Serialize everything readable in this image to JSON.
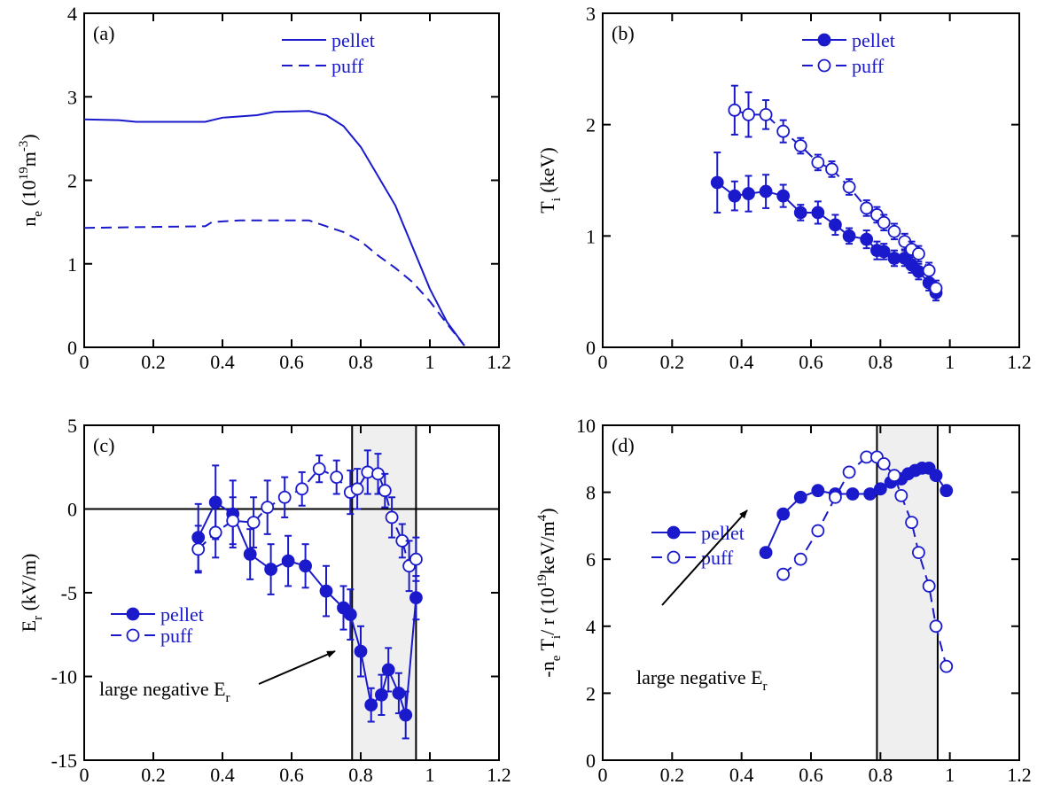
{
  "chart_data": [
    {
      "type": "line",
      "panel_label": "(a)",
      "xlim": [
        0,
        1.2
      ],
      "ylim": [
        0,
        4
      ],
      "xticks": [
        0,
        0.2,
        0.4,
        0.6,
        0.8,
        1,
        1.2
      ],
      "yticks": [
        0,
        1,
        2,
        3,
        4
      ],
      "ylabel": [
        {
          "text": "n"
        },
        {
          "text": "e",
          "shift": "sub"
        },
        {
          "text": " (10"
        },
        {
          "text": "19",
          "shift": "sup"
        },
        {
          "text": "m"
        },
        {
          "text": "-3",
          "shift": "sup"
        },
        {
          "text": ")"
        }
      ],
      "legend": "upper right",
      "series": [
        {
          "name": "pellet",
          "color": "#1a1acc",
          "style": "solid",
          "marker": "none",
          "x": [
            0,
            0.1,
            0.15,
            0.35,
            0.4,
            0.5,
            0.55,
            0.65,
            0.7,
            0.75,
            0.8,
            0.85,
            0.9,
            0.95,
            1.0,
            1.05,
            1.1
          ],
          "values": [
            2.73,
            2.72,
            2.7,
            2.7,
            2.75,
            2.78,
            2.82,
            2.83,
            2.78,
            2.65,
            2.4,
            2.05,
            1.7,
            1.2,
            0.7,
            0.3,
            0.02
          ]
        },
        {
          "name": "puff",
          "color": "#1a1acc",
          "style": "dashed",
          "marker": "none",
          "x": [
            0,
            0.35,
            0.37,
            0.45,
            0.65,
            0.7,
            0.75,
            0.8,
            0.85,
            0.9,
            0.95,
            1.0,
            1.05,
            1.1
          ],
          "values": [
            1.43,
            1.45,
            1.5,
            1.52,
            1.52,
            1.45,
            1.38,
            1.27,
            1.1,
            0.95,
            0.78,
            0.55,
            0.28,
            0.02
          ]
        }
      ]
    },
    {
      "type": "line",
      "panel_label": "(b)",
      "xlim": [
        0,
        1.2
      ],
      "ylim": [
        0,
        3
      ],
      "xticks": [
        0,
        0.2,
        0.4,
        0.6,
        0.8,
        1,
        1.2
      ],
      "yticks": [
        0,
        1,
        2,
        3
      ],
      "ylabel": [
        {
          "text": "T"
        },
        {
          "text": "i",
          "shift": "sub"
        },
        {
          "text": " (keV)"
        }
      ],
      "legend": "upper right",
      "series": [
        {
          "name": "pellet",
          "color": "#1a1acc",
          "style": "solid",
          "marker": "filled",
          "x": [
            0.33,
            0.38,
            0.42,
            0.47,
            0.52,
            0.57,
            0.62,
            0.67,
            0.71,
            0.76,
            0.79,
            0.81,
            0.84,
            0.87,
            0.89,
            0.91,
            0.94,
            0.96
          ],
          "values": [
            1.48,
            1.36,
            1.38,
            1.4,
            1.36,
            1.21,
            1.21,
            1.1,
            1.0,
            0.97,
            0.87,
            0.86,
            0.8,
            0.8,
            0.74,
            0.68,
            0.58,
            0.49
          ],
          "errors": [
            0.27,
            0.13,
            0.16,
            0.15,
            0.1,
            0.07,
            0.1,
            0.09,
            0.07,
            0.08,
            0.08,
            0.07,
            0.07,
            0.07,
            0.07,
            0.07,
            0.07,
            0.07
          ]
        },
        {
          "name": "puff",
          "color": "#1a1acc",
          "style": "dashed",
          "marker": "open",
          "x": [
            0.38,
            0.42,
            0.47,
            0.52,
            0.57,
            0.62,
            0.66,
            0.71,
            0.76,
            0.79,
            0.81,
            0.84,
            0.87,
            0.89,
            0.91,
            0.94,
            0.96
          ],
          "values": [
            2.13,
            2.09,
            2.09,
            1.94,
            1.81,
            1.66,
            1.6,
            1.44,
            1.25,
            1.19,
            1.12,
            1.04,
            0.95,
            0.88,
            0.84,
            0.69,
            0.53
          ],
          "errors": [
            0.22,
            0.2,
            0.13,
            0.1,
            0.07,
            0.07,
            0.07,
            0.07,
            0.07,
            0.07,
            0.07,
            0.07,
            0.07,
            0.07,
            0.07,
            0.07,
            0.07
          ]
        }
      ]
    },
    {
      "type": "line",
      "panel_label": "(c)",
      "xlim": [
        0,
        1.2
      ],
      "ylim": [
        -15,
        5
      ],
      "xticks": [
        0,
        0.2,
        0.4,
        0.6,
        0.8,
        1,
        1.2
      ],
      "yticks": [
        -15,
        -10,
        -5,
        0,
        5
      ],
      "ylabel": [
        {
          "text": "E"
        },
        {
          "text": "r",
          "shift": "sub"
        },
        {
          "text": " (kV/m)"
        }
      ],
      "legend": "lower left",
      "reference_line": 0,
      "shaded_band": [
        0.775,
        0.96
      ],
      "annotation": [
        {
          "text": "large negative E"
        },
        {
          "text": "r",
          "shift": "sub"
        }
      ],
      "series": [
        {
          "name": "pellet",
          "color": "#1a1acc",
          "style": "solid",
          "marker": "filled",
          "x": [
            0.33,
            0.38,
            0.43,
            0.48,
            0.54,
            0.59,
            0.64,
            0.7,
            0.75,
            0.77,
            0.8,
            0.83,
            0.86,
            0.88,
            0.91,
            0.93,
            0.96
          ],
          "values": [
            -1.7,
            0.4,
            -0.3,
            -2.7,
            -3.6,
            -3.1,
            -3.4,
            -4.9,
            -5.9,
            -6.3,
            -8.5,
            -11.7,
            -11.1,
            -9.6,
            -11.0,
            -12.3,
            -5.3
          ],
          "errors": [
            2,
            2.2,
            2,
            1.5,
            1.5,
            1.5,
            1.3,
            1.5,
            1.3,
            1.5,
            1.5,
            1,
            1.2,
            1.3,
            1.2,
            1.4,
            1.3
          ]
        },
        {
          "name": "puff",
          "color": "#1a1acc",
          "style": "dashed",
          "marker": "open",
          "x": [
            0.33,
            0.38,
            0.43,
            0.49,
            0.53,
            0.58,
            0.63,
            0.68,
            0.73,
            0.77,
            0.79,
            0.82,
            0.85,
            0.87,
            0.89,
            0.92,
            0.94,
            0.96
          ],
          "values": [
            -2.4,
            -1.4,
            -0.7,
            -0.8,
            0.1,
            0.7,
            1.2,
            2.4,
            1.9,
            1.0,
            1.2,
            2.2,
            2.1,
            1.1,
            -0.5,
            -1.9,
            -3.4,
            -3.0
          ],
          "errors": [
            1.4,
            1.5,
            1.4,
            1.5,
            1.6,
            1.2,
            1,
            0.8,
            1,
            1.3,
            1.2,
            1.3,
            1.2,
            1,
            1.2,
            1,
            1.5,
            1.3
          ]
        }
      ]
    },
    {
      "type": "line",
      "panel_label": "(d)",
      "xlim": [
        0,
        1.2
      ],
      "ylim": [
        0,
        10
      ],
      "xticks": [
        0,
        0.2,
        0.4,
        0.6,
        0.8,
        1,
        1.2
      ],
      "yticks": [
        0,
        2,
        4,
        6,
        8,
        10
      ],
      "ylabel": [
        {
          "text": "-n"
        },
        {
          "text": "e",
          "shift": "sub"
        },
        {
          "text": " T"
        },
        {
          "text": "i",
          "shift": "sub"
        },
        {
          "text": "/ r (10"
        },
        {
          "text": "19",
          "shift": "sup"
        },
        {
          "text": "keV/m"
        },
        {
          "text": "4",
          "shift": "sup"
        },
        {
          "text": ")"
        }
      ],
      "legend": "center left",
      "shaded_band": [
        0.79,
        0.965
      ],
      "annotation": [
        {
          "text": "large negative E"
        },
        {
          "text": "r",
          "shift": "sub"
        }
      ],
      "series": [
        {
          "name": "pellet",
          "color": "#1a1acc",
          "style": "solid",
          "marker": "filled",
          "x": [
            0.47,
            0.52,
            0.57,
            0.62,
            0.67,
            0.72,
            0.77,
            0.8,
            0.83,
            0.86,
            0.88,
            0.9,
            0.92,
            0.94,
            0.96,
            0.99
          ],
          "values": [
            6.2,
            7.35,
            7.85,
            8.05,
            7.95,
            7.95,
            7.95,
            8.1,
            8.3,
            8.4,
            8.55,
            8.65,
            8.72,
            8.72,
            8.5,
            8.05
          ]
        },
        {
          "name": "puff",
          "color": "#1a1acc",
          "style": "dashed",
          "marker": "open",
          "x": [
            0.52,
            0.57,
            0.62,
            0.67,
            0.71,
            0.76,
            0.79,
            0.81,
            0.84,
            0.86,
            0.89,
            0.91,
            0.94,
            0.96,
            0.99
          ],
          "values": [
            5.55,
            6.0,
            6.85,
            7.85,
            8.6,
            9.05,
            9.05,
            8.85,
            8.5,
            7.9,
            7.1,
            6.2,
            5.2,
            4.0,
            2.8
          ]
        }
      ]
    }
  ]
}
